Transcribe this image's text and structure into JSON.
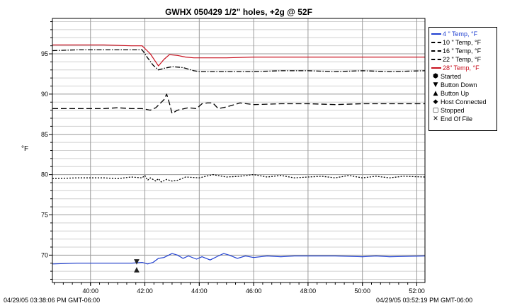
{
  "chart_data": {
    "type": "line",
    "title": "GWHX 050429 1/2\" holes, +2g @ 52F",
    "ylabel": "°F",
    "xlabel": "",
    "ylim": [
      66.6,
      99.4
    ],
    "xlim": [
      38.6,
      52.3
    ],
    "x_ticks": [
      "40:00",
      "42:00",
      "44:00",
      "46:00",
      "48:00",
      "50:00",
      "52:00"
    ],
    "y_ticks": [
      "70",
      "75",
      "80",
      "85",
      "90",
      "95"
    ],
    "grid": true,
    "legend_position": "right",
    "start_time": "04/29/05 03:38:06 PM GMT-06:00",
    "end_time": "04/29/05 03:52:19 PM GMT-06:00",
    "series": [
      {
        "name": "4 \" Temp, °F",
        "color": "#1f3fd0",
        "dash": "",
        "x": [
          38.6,
          39.5,
          40.5,
          41.5,
          41.9,
          42.1,
          42.3,
          42.5,
          42.7,
          43.0,
          43.2,
          43.4,
          43.6,
          43.9,
          44.1,
          44.4,
          44.7,
          44.9,
          45.1,
          45.4,
          45.7,
          46.0,
          46.5,
          47.0,
          47.5,
          48.0,
          49.0,
          50.0,
          50.5,
          51.0,
          52.3
        ],
        "y": [
          68.9,
          69.0,
          69.0,
          69.0,
          69.1,
          68.9,
          69.1,
          69.6,
          69.7,
          70.2,
          70.0,
          69.6,
          69.9,
          69.5,
          69.8,
          69.4,
          69.9,
          70.2,
          70.0,
          69.6,
          69.9,
          69.7,
          69.9,
          69.8,
          69.9,
          69.9,
          69.9,
          69.8,
          69.9,
          69.8,
          69.9
        ]
      },
      {
        "name": "10 \" Temp, °F",
        "color": "#000000",
        "dash": "2,2",
        "x": [
          38.6,
          39.5,
          40.5,
          41.0,
          41.5,
          41.9,
          42.0,
          42.1,
          42.2,
          42.4,
          42.5,
          42.6,
          42.8,
          43.0,
          43.2,
          43.5,
          44.0,
          44.5,
          45.0,
          45.5,
          46.0,
          46.5,
          47.0,
          47.5,
          48.0,
          48.5,
          49.0,
          49.5,
          50.0,
          50.5,
          51.0,
          51.5,
          52.3
        ],
        "y": [
          79.5,
          79.6,
          79.6,
          79.5,
          79.7,
          79.6,
          79.9,
          79.3,
          79.6,
          79.2,
          79.5,
          79.1,
          79.4,
          79.2,
          79.3,
          79.7,
          79.6,
          80.0,
          79.7,
          79.8,
          80.0,
          79.7,
          79.9,
          79.6,
          79.7,
          79.8,
          79.6,
          79.9,
          79.6,
          79.8,
          79.6,
          79.8,
          79.7
        ]
      },
      {
        "name": "16 \" Temp, °F",
        "color": "#000000",
        "dash": "8,4",
        "x": [
          38.6,
          39.5,
          40.5,
          41.0,
          41.5,
          41.9,
          42.2,
          42.4,
          42.7,
          42.8,
          42.9,
          43.0,
          43.2,
          43.6,
          43.9,
          44.1,
          44.3,
          44.5,
          44.7,
          45.0,
          45.5,
          46.0,
          47.0,
          48.0,
          49.0,
          50.0,
          51.0,
          52.3
        ],
        "y": [
          88.2,
          88.2,
          88.2,
          88.3,
          88.2,
          88.2,
          88.0,
          88.3,
          89.3,
          90.0,
          88.9,
          87.6,
          88.0,
          88.3,
          88.2,
          88.8,
          88.9,
          88.9,
          88.2,
          88.4,
          88.9,
          88.7,
          88.8,
          88.8,
          88.7,
          88.8,
          88.8,
          88.8
        ]
      },
      {
        "name": "22 \" Temp, °F",
        "color": "#000000",
        "dash": "7,2,1.5,2",
        "x": [
          38.6,
          39.5,
          40.5,
          41.5,
          41.9,
          42.1,
          42.3,
          42.5,
          42.7,
          43.0,
          43.4,
          43.8,
          44.0,
          45.0,
          46.0,
          47.0,
          48.0,
          49.0,
          50.0,
          51.0,
          52.3
        ],
        "y": [
          95.4,
          95.5,
          95.5,
          95.5,
          95.5,
          94.5,
          93.6,
          93.0,
          93.2,
          93.4,
          93.3,
          92.9,
          92.8,
          92.8,
          92.8,
          92.9,
          92.9,
          92.8,
          92.9,
          92.8,
          92.9
        ]
      },
      {
        "name": "28\" Temp, °F",
        "color": "#c8101e",
        "dash": "",
        "x": [
          38.6,
          39.5,
          40.5,
          41.5,
          41.9,
          42.2,
          42.4,
          42.5,
          42.7,
          42.9,
          43.2,
          43.5,
          43.8,
          44.0,
          45.0,
          46.0,
          47.0,
          48.0,
          49.0,
          50.0,
          51.0,
          52.3
        ],
        "y": [
          96.1,
          96.1,
          96.1,
          96.0,
          96.0,
          95.0,
          94.0,
          93.5,
          94.3,
          94.9,
          94.8,
          94.6,
          94.5,
          94.5,
          94.5,
          94.6,
          94.6,
          94.6,
          94.6,
          94.6,
          94.6,
          94.6
        ]
      }
    ],
    "event_markers": [
      {
        "type": "Button Down",
        "symbol": "▼",
        "x": 41.7,
        "y": 69.3
      },
      {
        "type": "Button Up",
        "symbol": "▲",
        "x": 41.7,
        "y": 68.3
      }
    ],
    "legend_events": [
      {
        "symbol": "⬢",
        "label": "Started"
      },
      {
        "symbol": "▼",
        "label": "Button Down"
      },
      {
        "symbol": "▲",
        "label": "Button Up"
      },
      {
        "symbol": "◆",
        "label": "Host Connected"
      },
      {
        "symbol": "▢",
        "label": "Stopped"
      },
      {
        "symbol": "✕",
        "label": "End Of File"
      }
    ]
  }
}
